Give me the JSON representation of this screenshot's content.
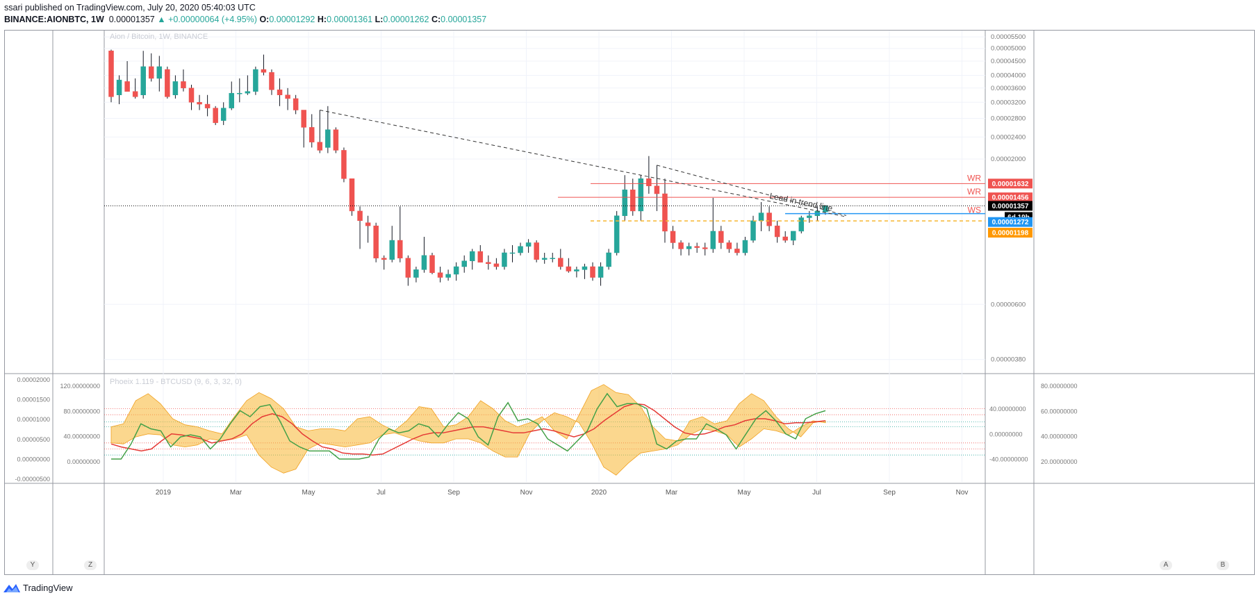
{
  "header": {
    "publisher": "ssari",
    "published_text": " published on TradingView.com, July 20, 2020 05:40:03 UTC",
    "symbol": "BINANCE:AIONBTC, 1W",
    "last": "0.00001357",
    "change": "▲ +0.00000064 (+4.95%)",
    "o_label": "O:",
    "o_value": "0.00001292",
    "h_label": "H:",
    "h_value": "0.00001361",
    "l_label": "L:",
    "l_value": "0.00001262",
    "c_label": "C:",
    "c_value": "0.00001357"
  },
  "footer": {
    "brand": "TradingView"
  },
  "corners": {
    "y": "Y",
    "z": "Z",
    "a": "A",
    "b": "B"
  },
  "chart_data": {
    "type": "candlestick",
    "title": "Aion / Bitcoin, 1W, BINANCE",
    "x_ticks": [
      "2019",
      "Mar",
      "May",
      "Jul",
      "Sep",
      "Nov",
      "2020",
      "Mar",
      "May",
      "Jul",
      "Sep",
      "Nov"
    ],
    "y_ticks": [
      "0.00005500",
      "0.00005000",
      "0.00004500",
      "0.00004000",
      "0.00003600",
      "0.00003200",
      "0.00002800",
      "0.00002400",
      "0.00002000",
      "0.00000600",
      "0.00000380"
    ],
    "y_scale": "log",
    "ylim": [
      3.5e-06,
      5.6e-05
    ],
    "price_labels": [
      {
        "text": "0.00001632",
        "value": 1.632e-05,
        "color": "#ef5350"
      },
      {
        "text": "0.00001456",
        "value": 1.456e-05,
        "color": "#ef5350"
      },
      {
        "text": "0.00001357",
        "value": 1.357e-05,
        "color": "#000000"
      },
      {
        "text": "6d 19h",
        "value": 1.3e-05,
        "color": "#000000"
      },
      {
        "text": "0.00001272",
        "value": 1.272e-05,
        "color": "#2196f3"
      },
      {
        "text": "0.00001198",
        "value": 1.198e-05,
        "color": "#ff9800"
      }
    ],
    "candles": [
      [
        4.9e-05,
        4.95e-05,
        3.2e-05,
        3.35e-05
      ],
      [
        3.4e-05,
        4e-05,
        3.15e-05,
        3.85e-05
      ],
      [
        3.8e-05,
        4.5e-05,
        3.5e-05,
        3.5e-05
      ],
      [
        3.5e-05,
        3.9e-05,
        3.3e-05,
        3.35e-05
      ],
      [
        3.4e-05,
        4.9e-05,
        3.3e-05,
        4.3e-05
      ],
      [
        4.3e-05,
        4.8e-05,
        3.8e-05,
        3.9e-05
      ],
      [
        3.9e-05,
        4.7e-05,
        3.5e-05,
        4.3e-05
      ],
      [
        4.2e-05,
        4.3e-05,
        3.3e-05,
        3.35e-05
      ],
      [
        3.4e-05,
        4e-05,
        3.3e-05,
        3.8e-05
      ],
      [
        3.8e-05,
        4.2e-05,
        3.5e-05,
        3.6e-05
      ],
      [
        3.6e-05,
        3.7e-05,
        3e-05,
        3.2e-05
      ],
      [
        3.2e-05,
        3.4e-05,
        3e-05,
        3.15e-05
      ],
      [
        3.15e-05,
        3.4e-05,
        2.85e-05,
        3.05e-05
      ],
      [
        3.05e-05,
        3.1e-05,
        2.65e-05,
        2.7e-05
      ],
      [
        2.75e-05,
        3.2e-05,
        2.65e-05,
        3.05e-05
      ],
      [
        3.05e-05,
        3.8e-05,
        3e-05,
        3.45e-05
      ],
      [
        3.45e-05,
        3.9e-05,
        3.2e-05,
        3.45e-05
      ],
      [
        3.45e-05,
        4e-05,
        3.4e-05,
        3.5e-05
      ],
      [
        3.5e-05,
        4.3e-05,
        3.4e-05,
        4.2e-05
      ],
      [
        4.2e-05,
        4.75e-05,
        4e-05,
        4.1e-05
      ],
      [
        4.1e-05,
        4.2e-05,
        3.4e-05,
        3.55e-05
      ],
      [
        3.55e-05,
        3.9e-05,
        3.1e-05,
        3.4e-05
      ],
      [
        3.4e-05,
        3.6e-05,
        3e-05,
        3.3e-05
      ],
      [
        3.3e-05,
        3.4e-05,
        2.9e-05,
        3e-05
      ],
      [
        3e-05,
        3e-05,
        2.2e-05,
        2.6e-05
      ],
      [
        2.6e-05,
        2.9e-05,
        2.2e-05,
        2.3e-05
      ],
      [
        2.3e-05,
        3e-05,
        2.1e-05,
        2.15e-05
      ],
      [
        2.2e-05,
        3.1e-05,
        2.1e-05,
        2.55e-05
      ],
      [
        2.55e-05,
        2.6e-05,
        2.1e-05,
        2.15e-05
      ],
      [
        2.15e-05,
        2.2e-05,
        1.65e-05,
        1.7e-05
      ],
      [
        1.7e-05,
        1.7e-05,
        1.25e-05,
        1.3e-05
      ],
      [
        1.3e-05,
        1.35e-05,
        9.5e-06,
        1.2e-05
      ],
      [
        1.18e-05,
        1.25e-05,
        1e-05,
        1.15e-05
      ],
      [
        1.15e-05,
        1.18e-05,
        8.5e-06,
        8.8e-06
      ],
      [
        8.8e-06,
        9e-06,
        8e-06,
        8.7e-06
      ],
      [
        8.7e-06,
        1.15e-05,
        8.5e-06,
        1.02e-05
      ],
      [
        1.02e-05,
        1.35e-05,
        8.5e-06,
        8.8e-06
      ],
      [
        8.8e-06,
        9e-06,
        7e-06,
        7.5e-06
      ],
      [
        7.5e-06,
        8.2e-06,
        7.2e-06,
        8e-06
      ],
      [
        8e-06,
        1.05e-05,
        7.8e-06,
        9e-06
      ],
      [
        9e-06,
        9.2e-06,
        7.7e-06,
        7.8e-06
      ],
      [
        7.8e-06,
        8.2e-06,
        7.2e-06,
        7.5e-06
      ],
      [
        7.5e-06,
        8e-06,
        7.3e-06,
        7.7e-06
      ],
      [
        7.7e-06,
        8.5e-06,
        7.3e-06,
        8.2e-06
      ],
      [
        8.2e-06,
        9e-06,
        7.8e-06,
        8.6e-06
      ],
      [
        8.6e-06,
        9.5e-06,
        8e-06,
        9.3e-06
      ],
      [
        9.3e-06,
        9.8e-06,
        8.5e-06,
        8.5e-06
      ],
      [
        8.5e-06,
        9e-06,
        8e-06,
        8.4e-06
      ],
      [
        8.4e-06,
        8.8e-06,
        8e-06,
        8.2e-06
      ],
      [
        8.2e-06,
        9.5e-06,
        8e-06,
        9.2e-06
      ],
      [
        9.2e-06,
        9.8e-06,
        8.5e-06,
        9.2e-06
      ],
      [
        9.2e-06,
        1e-05,
        9e-06,
        9.7e-06
      ],
      [
        9.7e-06,
        1.03e-05,
        9.2e-06,
        1e-05
      ],
      [
        1e-05,
        1.02e-05,
        8.5e-06,
        8.7e-06
      ],
      [
        8.7e-06,
        9.2e-06,
        8.4e-06,
        8.8e-06
      ],
      [
        8.8e-06,
        9.2e-06,
        8.5e-06,
        8.8e-06
      ],
      [
        8.8e-06,
        9.5e-06,
        8e-06,
        8.2e-06
      ],
      [
        8.2e-06,
        8.8e-06,
        7.8e-06,
        7.9e-06
      ],
      [
        7.9e-06,
        8.2e-06,
        7.5e-06,
        8e-06
      ],
      [
        8e-06,
        8.4e-06,
        7.4e-06,
        8.2e-06
      ],
      [
        8.2e-06,
        8.5e-06,
        7.3e-06,
        7.5e-06
      ],
      [
        7.5e-06,
        8.5e-06,
        7e-06,
        8.2e-06
      ],
      [
        8.2e-06,
        9.5e-06,
        8e-06,
        9.2e-06
      ],
      [
        9.2e-06,
        1.3e-05,
        9e-06,
        1.25e-05
      ],
      [
        1.25e-05,
        1.75e-05,
        1.2e-05,
        1.55e-05
      ],
      [
        1.55e-05,
        1.7e-05,
        1.25e-05,
        1.3e-05
      ],
      [
        1.3e-05,
        1.75e-05,
        1.2e-05,
        1.7e-05
      ],
      [
        1.7e-05,
        2.05e-05,
        1.5e-05,
        1.6e-05
      ],
      [
        1.6e-05,
        1.9e-05,
        1.3e-05,
        1.5e-05
      ],
      [
        1.5e-05,
        1.7e-05,
        1e-05,
        1.1e-05
      ],
      [
        1.1e-05,
        1.15e-05,
        9.5e-06,
        1e-05
      ],
      [
        1e-05,
        1.02e-05,
        9e-06,
        9.5e-06
      ],
      [
        9.5e-06,
        1e-05,
        9e-06,
        9.7e-06
      ],
      [
        9.7e-06,
        1e-05,
        9.2e-06,
        9.6e-06
      ],
      [
        9.6e-06,
        1e-05,
        9e-06,
        9.5e-06
      ],
      [
        9.5e-06,
        1.45e-05,
        9.2e-06,
        1.1e-05
      ],
      [
        1.1e-05,
        1.15e-05,
        9.5e-06,
        1e-05
      ],
      [
        1e-05,
        1.02e-05,
        9.2e-06,
        9.5e-06
      ],
      [
        9.5e-06,
        1e-05,
        9e-06,
        9.2e-06
      ],
      [
        9.2e-06,
        1.05e-05,
        9e-06,
        1.02e-05
      ],
      [
        1.02e-05,
        1.25e-05,
        1e-05,
        1.2e-05
      ],
      [
        1.2e-05,
        1.4e-05,
        1.1e-05,
        1.28e-05
      ],
      [
        1.28e-05,
        1.35e-05,
        1.1e-05,
        1.15e-05
      ],
      [
        1.15e-05,
        1.2e-05,
        1e-05,
        1.05e-05
      ],
      [
        1.05e-05,
        1.1e-05,
        1e-05,
        1.02e-05
      ],
      [
        1.02e-05,
        1.1e-05,
        9.8e-06,
        1.1e-05
      ],
      [
        1.1e-05,
        1.25e-05,
        1.08e-05,
        1.23e-05
      ],
      [
        1.23e-05,
        1.3e-05,
        1.18e-05,
        1.25e-05
      ],
      [
        1.25e-05,
        1.35e-05,
        1.2e-05,
        1.3e-05
      ],
      [
        1.29e-05,
        1.36e-05,
        1.26e-05,
        1.36e-05
      ]
    ],
    "annotations": [
      {
        "text": "Lead in trend line"
      },
      {
        "text": "WR",
        "value": 1.632e-05
      },
      {
        "text": "WR",
        "value": 1.456e-05
      },
      {
        "text": "WS",
        "value": 1.272e-05
      }
    ],
    "indicator": {
      "title": "Phoeix 1.119 - BTCUSD (9, 6, 3, 32, 0)",
      "left_ticks": [
        "0.00002000",
        "0.00001500",
        "0.00001000",
        "0.00000500",
        "0.00000000",
        "-0.00000500"
      ],
      "left_ticks2": [
        "120.00000000",
        "80.00000000",
        "40.00000000",
        "0.00000000"
      ],
      "right_ticks": [
        "80.00000000",
        "60.00000000",
        "40.00000000",
        "20.00000000"
      ],
      "right_ticks2": [
        "40.00000000",
        "0.00000000",
        "-40.00000000"
      ],
      "green_line": [
        20,
        20,
        35,
        55,
        50,
        48,
        32,
        42,
        44,
        42,
        30,
        40,
        55,
        68,
        62,
        72,
        74,
        58,
        38,
        32,
        28,
        28,
        28,
        20,
        20,
        20,
        22,
        40,
        50,
        46,
        48,
        55,
        52,
        42,
        55,
        66,
        60,
        42,
        34,
        62,
        76,
        58,
        60,
        55,
        40,
        34,
        28,
        38,
        48,
        70,
        85,
        72,
        75,
        75,
        70,
        35,
        30,
        38,
        40,
        40,
        55,
        50,
        44,
        30,
        45,
        60,
        68,
        58,
        45,
        40,
        60,
        65,
        68
      ],
      "red_line": [
        35,
        32,
        30,
        28,
        30,
        38,
        45,
        44,
        42,
        40,
        36,
        38,
        40,
        45,
        55,
        62,
        65,
        62,
        55,
        45,
        38,
        32,
        30,
        26,
        25,
        25,
        24,
        25,
        30,
        35,
        40,
        44,
        46,
        46,
        48,
        50,
        52,
        52,
        50,
        48,
        46,
        46,
        48,
        50,
        48,
        45,
        42,
        45,
        50,
        58,
        65,
        72,
        75,
        74,
        68,
        60,
        52,
        46,
        44,
        45,
        48,
        52,
        54,
        58,
        60,
        60,
        58,
        55,
        56,
        56,
        57,
        58
      ],
      "band_upper": [
        52,
        55,
        78,
        85,
        75,
        60,
        54,
        52,
        48,
        45,
        62,
        78,
        86,
        80,
        70,
        52,
        48,
        50,
        50,
        48,
        60,
        62,
        54,
        48,
        58,
        72,
        70,
        52,
        54,
        62,
        78,
        70,
        58,
        52,
        56,
        62,
        48,
        40,
        64,
        88,
        94,
        86,
        84,
        72,
        52,
        40,
        38,
        58,
        62,
        55,
        58,
        75,
        85,
        78,
        62,
        50,
        42,
        56,
        58
      ],
      "band_lower": [
        36,
        35,
        42,
        45,
        44,
        34,
        32,
        34,
        40,
        38,
        40,
        44,
        24,
        12,
        6,
        10,
        30,
        36,
        34,
        32,
        34,
        36,
        44,
        46,
        42,
        38,
        36,
        36,
        40,
        40,
        36,
        28,
        22,
        22,
        46,
        58,
        66,
        62,
        56,
        36,
        12,
        4,
        16,
        26,
        28,
        30,
        34,
        44,
        50,
        48,
        44,
        32,
        40,
        50,
        48,
        44,
        52,
        58,
        56
      ]
    }
  }
}
